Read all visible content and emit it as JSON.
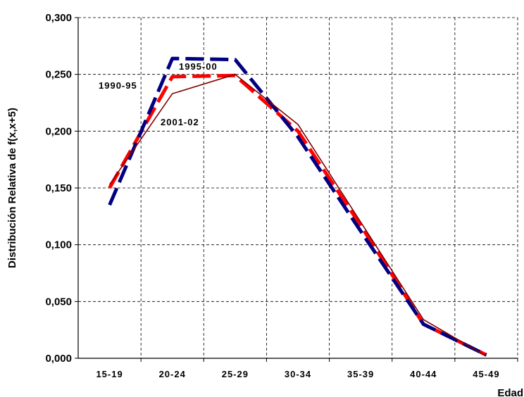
{
  "chart_data": {
    "type": "line",
    "title": "",
    "xlabel": "Edad",
    "ylabel": "Distribución Relativa de f(x,x+5)",
    "categories": [
      "15-19",
      "20-24",
      "25-29",
      "30-34",
      "35-39",
      "40-44",
      "45-49"
    ],
    "y_ticks": [
      "0,000",
      "0,050",
      "0,100",
      "0,150",
      "0,200",
      "0,250",
      "0,300"
    ],
    "ylim": [
      0,
      0.3
    ],
    "grid": true,
    "legend": "none",
    "series": [
      {
        "name": "1990-95",
        "color": "#ff0000",
        "style": "dashed-thick",
        "values": [
          0.15,
          0.248,
          0.249,
          0.2,
          0.117,
          0.03,
          0.003
        ]
      },
      {
        "name": "1995-00",
        "color": "#000080",
        "style": "dashed-thick",
        "values": [
          0.135,
          0.264,
          0.263,
          0.195,
          0.112,
          0.03,
          0.003
        ]
      },
      {
        "name": "2001-02",
        "color": "#800000",
        "style": "solid-thin",
        "values": [
          0.153,
          0.233,
          0.25,
          0.206,
          0.12,
          0.034,
          0.002
        ],
        "points_override": [
          [
            0,
            0.153
          ],
          [
            1,
            0.233
          ],
          [
            2,
            0.25
          ],
          [
            3,
            0.206
          ],
          [
            4,
            0.12
          ],
          [
            5,
            0.034
          ],
          [
            6,
            0.002
          ]
        ]
      }
    ]
  }
}
